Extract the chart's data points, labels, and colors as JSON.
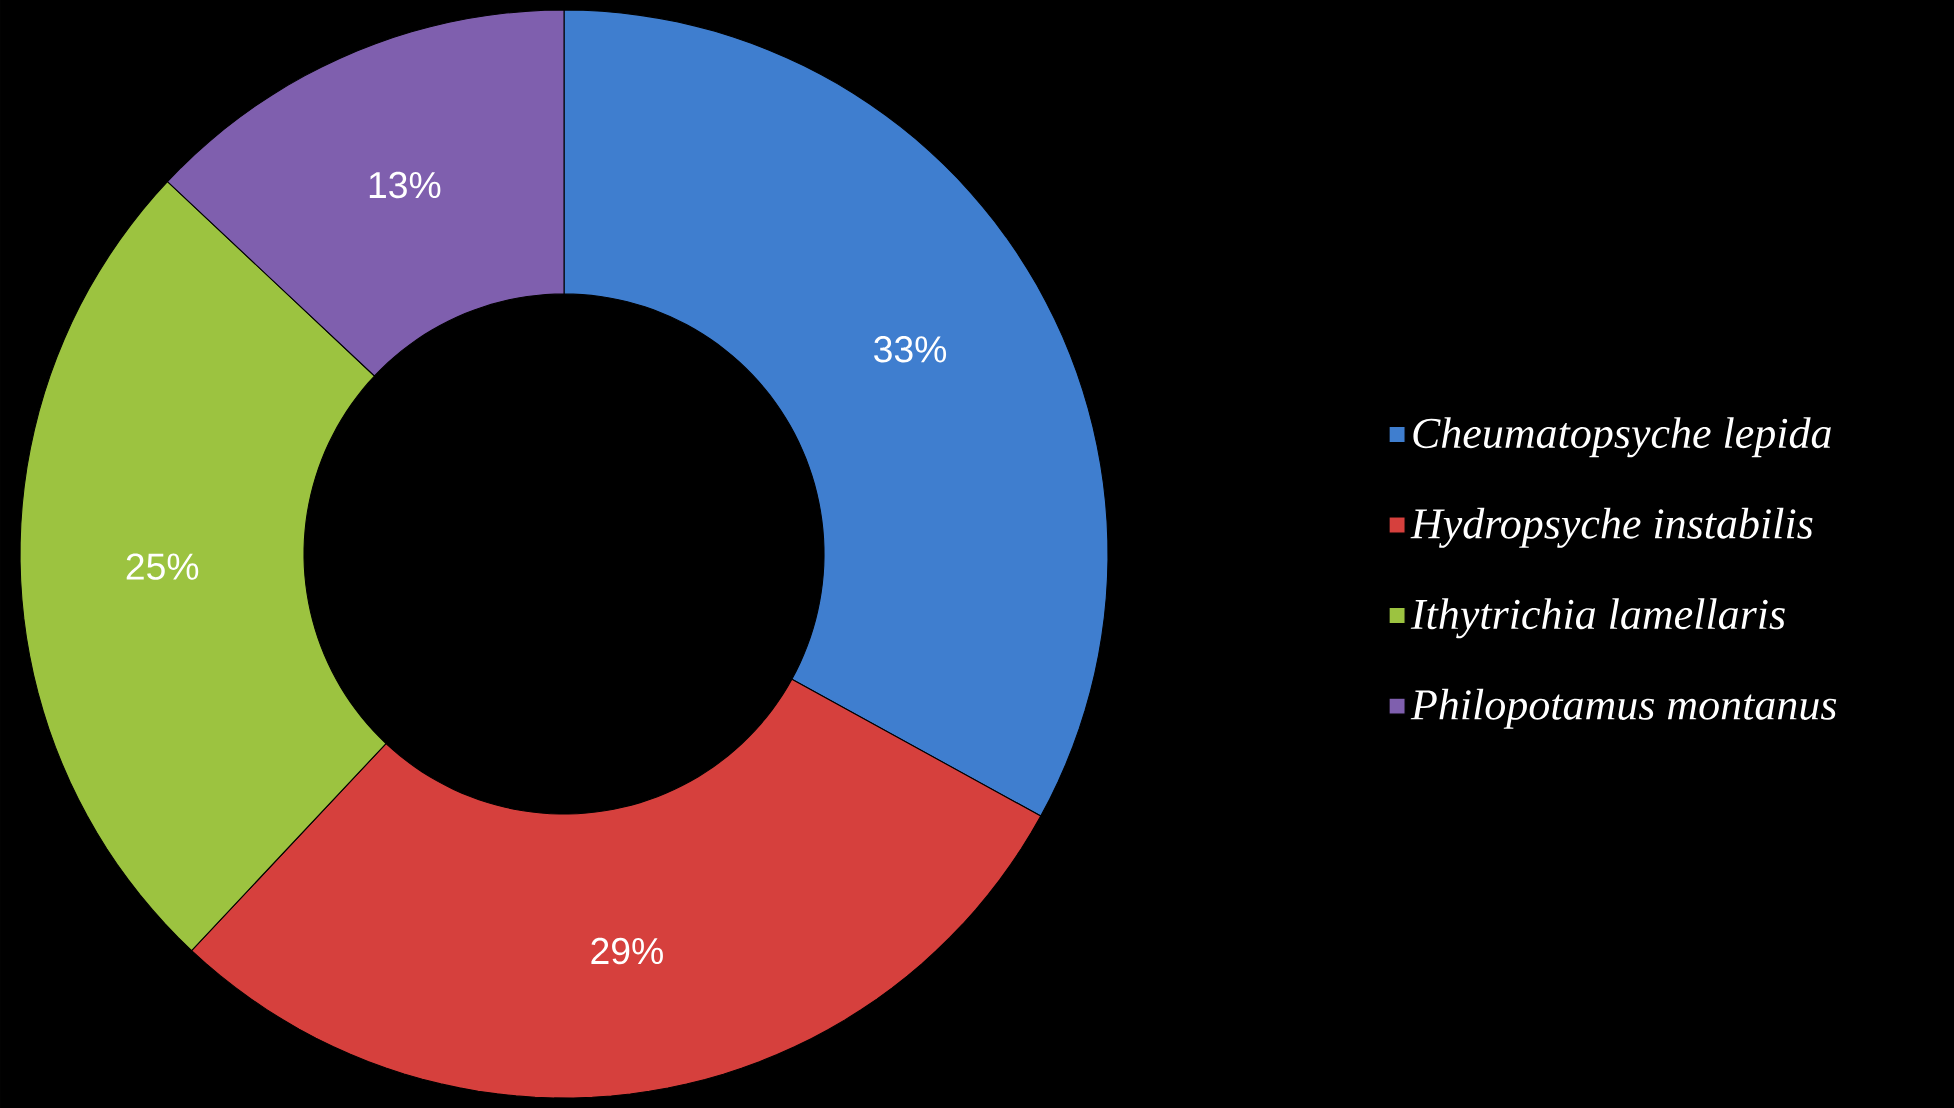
{
  "chart_data": {
    "type": "donut",
    "categories": [
      "*Cheumatopsyche lepida*",
      "*Hydropsyche instabilis*",
      "*Ithytrichia lamellaris*",
      "*Philopotamus montanus*"
    ],
    "values": [
      33,
      29,
      25,
      13
    ],
    "colors": [
      "#3f7ecf",
      "#d6403d",
      "#9cc340",
      "#7f5fae"
    ],
    "value_labels": [
      "33%",
      "29%",
      "25%",
      "13%"
    ],
    "legend": "right"
  }
}
